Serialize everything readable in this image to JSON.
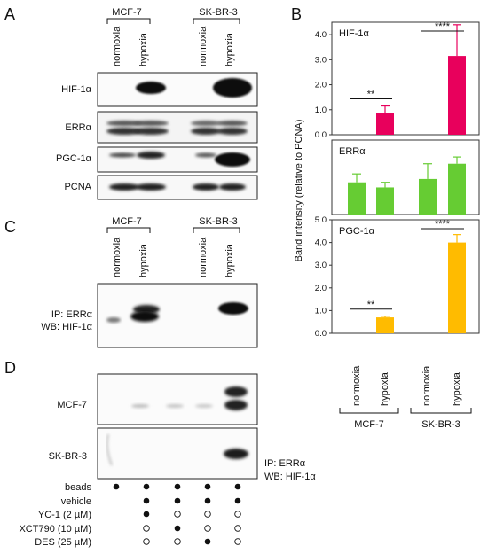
{
  "panels": {
    "A": "A",
    "B": "B",
    "C": "C",
    "D": "D"
  },
  "cell_lines": [
    "MCF-7",
    "SK-BR-3"
  ],
  "conditions": [
    "normoxia",
    "hypoxia",
    "normoxia",
    "hypoxia"
  ],
  "panelA_rows": [
    "HIF-1α",
    "ERRα",
    "PGC-1α",
    "PCNA"
  ],
  "panelC_label": [
    "IP: ERRα",
    "WB: HIF-1α"
  ],
  "panelD_rows": [
    "MCF-7",
    "SK-BR-3"
  ],
  "panelD_label": [
    "IP: ERRα",
    "WB: HIF-1α"
  ],
  "treatment_table": {
    "rows": [
      {
        "label": "beads",
        "marks": [
          1,
          1,
          1,
          1,
          1
        ]
      },
      {
        "label": "vehicle",
        "marks": [
          null,
          1,
          1,
          1,
          1
        ]
      },
      {
        "label": "YC-1  (2 µM)",
        "marks": [
          null,
          1,
          0,
          0,
          0
        ]
      },
      {
        "label": "XCT790 (10 µM)",
        "marks": [
          null,
          0,
          1,
          0,
          0
        ]
      },
      {
        "label": "DES (25 µM)",
        "marks": [
          null,
          0,
          0,
          1,
          0
        ]
      }
    ]
  },
  "colors": {
    "hif": "#E8005C",
    "erra": "#66CC33",
    "pgc": "#FFBB00"
  },
  "chart_data": {
    "type": "bar",
    "ylabel": "Band intensity (relative to PCNA)",
    "categories": [
      "normoxia",
      "hypoxia",
      "normoxia",
      "hypoxia"
    ],
    "groups": [
      "MCF-7",
      "SK-BR-3"
    ],
    "subplots": [
      {
        "title": "HIF-1α",
        "color": "#E8005C",
        "ylim": [
          0,
          4.5
        ],
        "yticks": [
          "0.0",
          "1.0",
          "2.0",
          "3.0",
          "4.0"
        ],
        "values": [
          0,
          0.85,
          0,
          3.15
        ],
        "errors": [
          0,
          0.3,
          0,
          1.25
        ],
        "significance": [
          {
            "pair": [
              0,
              1
            ],
            "label": "**"
          },
          {
            "pair": [
              2,
              3
            ],
            "label": "****"
          }
        ]
      },
      {
        "title": "ERRα",
        "color": "#66CC33",
        "ylim": [
          0,
          2.2
        ],
        "yticks": [],
        "values": [
          0.95,
          0.8,
          1.05,
          1.5
        ],
        "errors": [
          0.25,
          0.15,
          0.45,
          0.2
        ],
        "significance": []
      },
      {
        "title": "PGC-1α",
        "color": "#FFBB00",
        "ylim": [
          0,
          5.0
        ],
        "yticks": [
          "0.0",
          "1.0",
          "2.0",
          "3.0",
          "4.0",
          "5.0"
        ],
        "values": [
          0,
          0.7,
          0,
          4.0
        ],
        "errors": [
          0,
          0.05,
          0,
          0.35
        ],
        "significance": [
          {
            "pair": [
              0,
              1
            ],
            "label": "**"
          },
          {
            "pair": [
              2,
              3
            ],
            "label": "****"
          }
        ]
      }
    ]
  }
}
